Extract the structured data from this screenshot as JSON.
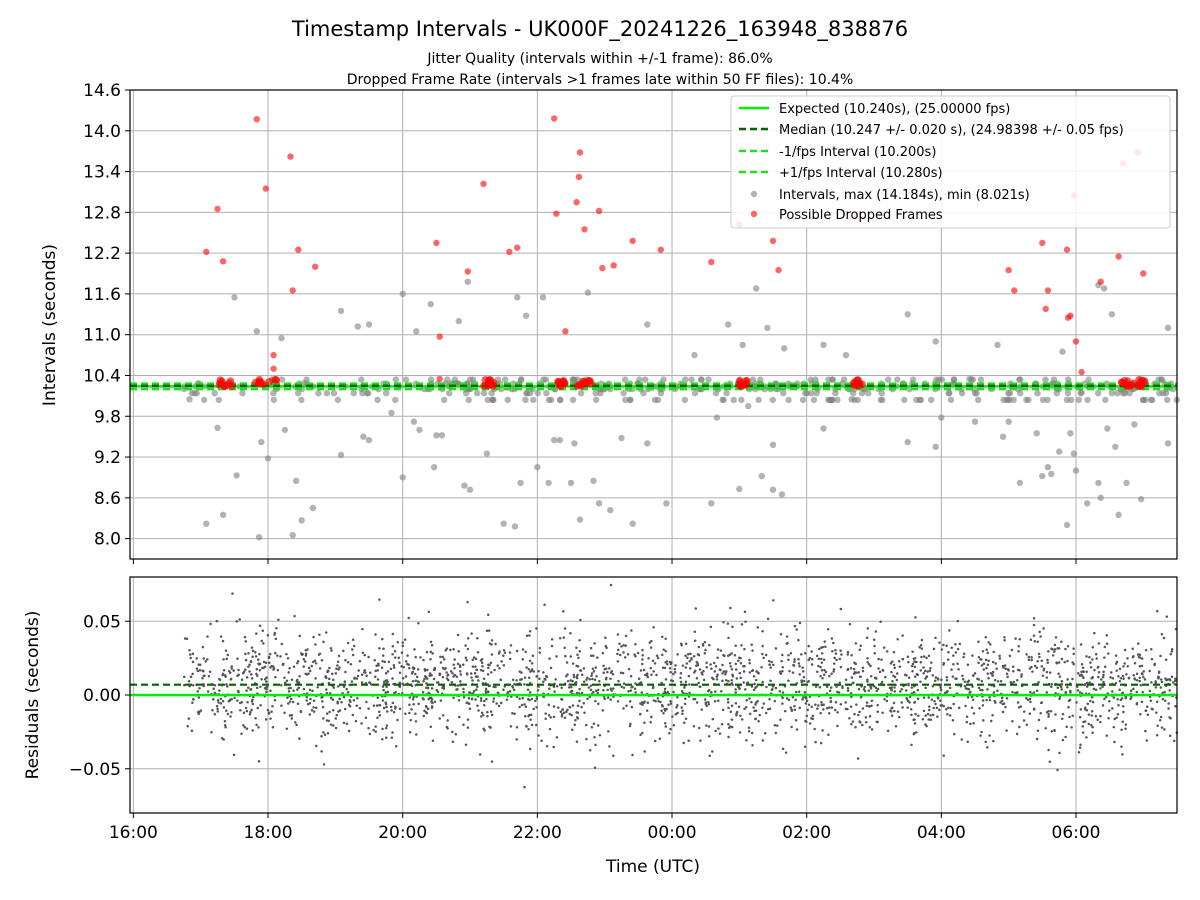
{
  "title": "Timestamp Intervals - UK000F_20241226_163948_838876",
  "subtitle_1": "Jitter Quality (intervals within +/-1 frame): 86.0%",
  "subtitle_2": "Dropped Frame Rate (intervals >1 frames late within 50 FF files): 10.4%",
  "colors": {
    "expected": "#00ee00",
    "median": "#006400",
    "interval_bounds": "#22dd22",
    "intervals": "#808080",
    "dropped": "#ff0000",
    "residuals": "#555555",
    "grid": "#b0b0b0"
  },
  "chart_data": [
    {
      "type": "scatter",
      "panel": "intervals",
      "ylabel": "Intervals (seconds)",
      "x_unit": "time (UTC)",
      "xlim": [
        "2024-12-26T15:57",
        "2024-12-27T07:30"
      ],
      "ylim": [
        7.7,
        14.6
      ],
      "y_ticks": [
        "8.0",
        "8.6",
        "9.2",
        "9.8",
        "10.4",
        "11.0",
        "11.6",
        "12.2",
        "12.8",
        "13.4",
        "14.0",
        "14.6"
      ],
      "grid": true,
      "legend_position": "top-right",
      "legend": [
        "Expected (10.240s), (25.00000 fps)",
        "Median (10.247 +/- 0.020 s), (24.98398 +/- 0.05 fps)",
        "-1/fps Interval (10.200s)",
        "+1/fps Interval (10.280s)",
        "Intervals, max (14.184s), min (8.021s)",
        "Possible Dropped Frames"
      ],
      "lines": {
        "expected": 10.24,
        "median": 10.247,
        "lower_interval": 10.2,
        "upper_interval": 10.28
      },
      "series": [
        {
          "name": "Intervals, max (14.184s), min (8.021s)",
          "kind": "intervals",
          "points": [
            [
              "16:50",
              10.05
            ],
            [
              "17:05",
              8.22
            ],
            [
              "17:15",
              9.63
            ],
            [
              "17:20",
              8.35
            ],
            [
              "17:30",
              11.55
            ],
            [
              "17:32",
              8.93
            ],
            [
              "17:50",
              11.05
            ],
            [
              "17:52",
              8.02
            ],
            [
              "17:54",
              9.42
            ],
            [
              "18:00",
              9.18
            ],
            [
              "18:12",
              10.95
            ],
            [
              "18:15",
              9.6
            ],
            [
              "18:22",
              8.05
            ],
            [
              "18:25",
              8.85
            ],
            [
              "18:30",
              8.27
            ],
            [
              "18:40",
              8.45
            ],
            [
              "19:05",
              11.35
            ],
            [
              "19:05",
              9.23
            ],
            [
              "19:20",
              11.12
            ],
            [
              "19:25",
              9.5
            ],
            [
              "19:30",
              11.15
            ],
            [
              "19:30",
              9.45
            ],
            [
              "19:50",
              9.85
            ],
            [
              "20:00",
              11.6
            ],
            [
              "20:00",
              8.9
            ],
            [
              "20:10",
              9.72
            ],
            [
              "20:12",
              11.05
            ],
            [
              "20:15",
              9.6
            ],
            [
              "20:25",
              11.45
            ],
            [
              "20:28",
              9.05
            ],
            [
              "20:30",
              9.52
            ],
            [
              "20:35",
              9.52
            ],
            [
              "20:50",
              11.2
            ],
            [
              "20:55",
              8.78
            ],
            [
              "20:58",
              11.78
            ],
            [
              "21:00",
              8.72
            ],
            [
              "21:15",
              9.25
            ],
            [
              "21:30",
              8.22
            ],
            [
              "21:40",
              8.18
            ],
            [
              "21:42",
              11.55
            ],
            [
              "21:45",
              8.82
            ],
            [
              "21:50",
              11.28
            ],
            [
              "22:00",
              9.05
            ],
            [
              "22:05",
              11.55
            ],
            [
              "22:10",
              8.82
            ],
            [
              "22:15",
              9.45
            ],
            [
              "22:20",
              9.45
            ],
            [
              "22:30",
              8.82
            ],
            [
              "22:33",
              9.4
            ],
            [
              "22:38",
              8.28
            ],
            [
              "22:45",
              11.62
            ],
            [
              "22:50",
              8.85
            ],
            [
              "22:55",
              8.52
            ],
            [
              "23:05",
              8.42
            ],
            [
              "23:15",
              9.48
            ],
            [
              "23:25",
              8.22
            ],
            [
              "23:38",
              11.15
            ],
            [
              "23:38",
              9.4
            ],
            [
              "23:55",
              8.52
            ],
            [
              "00:20",
              10.7
            ],
            [
              "00:35",
              8.52
            ],
            [
              "00:40",
              9.78
            ],
            [
              "00:50",
              11.15
            ],
            [
              "01:00",
              8.73
            ],
            [
              "01:03",
              10.85
            ],
            [
              "01:08",
              9.95
            ],
            [
              "01:15",
              11.68
            ],
            [
              "01:20",
              8.92
            ],
            [
              "01:25",
              11.1
            ],
            [
              "01:30",
              8.72
            ],
            [
              "01:30",
              9.38
            ],
            [
              "01:38",
              8.65
            ],
            [
              "01:40",
              10.8
            ],
            [
              "02:15",
              10.85
            ],
            [
              "02:15",
              9.62
            ],
            [
              "02:35",
              10.7
            ],
            [
              "02:40",
              10.05
            ],
            [
              "03:30",
              9.42
            ],
            [
              "03:30",
              11.3
            ],
            [
              "03:55",
              9.35
            ],
            [
              "03:55",
              10.9
            ],
            [
              "04:00",
              9.78
            ],
            [
              "04:25",
              10.35
            ],
            [
              "04:30",
              9.72
            ],
            [
              "04:50",
              10.85
            ],
            [
              "04:55",
              9.5
            ],
            [
              "05:00",
              9.72
            ],
            [
              "05:10",
              8.82
            ],
            [
              "05:25",
              9.55
            ],
            [
              "05:30",
              8.92
            ],
            [
              "05:35",
              9.05
            ],
            [
              "05:38",
              8.95
            ],
            [
              "05:45",
              9.28
            ],
            [
              "05:48",
              10.75
            ],
            [
              "05:52",
              8.2
            ],
            [
              "05:55",
              9.55
            ],
            [
              "05:58",
              9.25
            ],
            [
              "06:00",
              9.0
            ],
            [
              "06:05",
              10.15
            ],
            [
              "06:10",
              8.52
            ],
            [
              "06:20",
              11.73
            ],
            [
              "06:20",
              8.82
            ],
            [
              "06:22",
              8.6
            ],
            [
              "06:25",
              11.68
            ],
            [
              "06:28",
              9.62
            ],
            [
              "06:32",
              11.3
            ],
            [
              "06:35",
              9.35
            ],
            [
              "06:38",
              8.35
            ],
            [
              "06:45",
              8.82
            ],
            [
              "06:50",
              10.2
            ],
            [
              "06:52",
              9.68
            ],
            [
              "06:58",
              8.58
            ],
            [
              "07:22",
              11.1
            ],
            [
              "07:22",
              9.4
            ]
          ],
          "band": {
            "from": "16:45",
            "to": "07:30",
            "values": [
              10.04,
              10.14,
              10.2,
              10.24,
              10.28,
              10.34
            ]
          }
        },
        {
          "name": "Possible Dropped Frames",
          "kind": "dropped",
          "points": [
            [
              "17:05",
              12.22
            ],
            [
              "17:15",
              12.85
            ],
            [
              "17:20",
              12.08
            ],
            [
              "17:50",
              14.17
            ],
            [
              "17:58",
              13.15
            ],
            [
              "18:05",
              10.7
            ],
            [
              "18:05",
              10.5
            ],
            [
              "18:20",
              13.62
            ],
            [
              "18:22",
              11.65
            ],
            [
              "18:27",
              12.25
            ],
            [
              "18:42",
              12.0
            ],
            [
              "20:30",
              12.35
            ],
            [
              "20:33",
              10.97
            ],
            [
              "20:33",
              10.35
            ],
            [
              "20:58",
              11.93
            ],
            [
              "21:12",
              13.22
            ],
            [
              "21:35",
              12.22
            ],
            [
              "21:42",
              12.28
            ],
            [
              "22:15",
              14.18
            ],
            [
              "22:17",
              12.78
            ],
            [
              "22:25",
              11.05
            ],
            [
              "22:35",
              12.95
            ],
            [
              "22:37",
              13.32
            ],
            [
              "22:38",
              13.68
            ],
            [
              "22:42",
              12.55
            ],
            [
              "22:55",
              12.82
            ],
            [
              "22:58",
              11.98
            ],
            [
              "23:08",
              12.02
            ],
            [
              "23:25",
              12.38
            ],
            [
              "23:50",
              12.25
            ],
            [
              "00:35",
              12.07
            ],
            [
              "01:00",
              12.62
            ],
            [
              "01:30",
              12.38
            ],
            [
              "01:35",
              11.95
            ],
            [
              "02:45",
              12.75
            ],
            [
              "05:00",
              11.95
            ],
            [
              "05:05",
              11.65
            ],
            [
              "05:30",
              12.35
            ],
            [
              "05:33",
              11.38
            ],
            [
              "05:35",
              11.65
            ],
            [
              "05:52",
              12.25
            ],
            [
              "05:53",
              11.25
            ],
            [
              "05:55",
              11.28
            ],
            [
              "05:58",
              13.05
            ],
            [
              "06:00",
              10.9
            ],
            [
              "06:05",
              10.45
            ],
            [
              "06:22",
              11.78
            ],
            [
              "06:38",
              12.15
            ],
            [
              "06:42",
              13.52
            ],
            [
              "06:55",
              13.68
            ],
            [
              "07:00",
              11.9
            ]
          ],
          "clusters": [
            {
              "from": "17:15",
              "to": "17:28"
            },
            {
              "from": "17:48",
              "to": "18:08"
            },
            {
              "from": "21:12",
              "to": "21:22"
            },
            {
              "from": "22:15",
              "to": "22:25"
            },
            {
              "from": "22:35",
              "to": "22:48"
            },
            {
              "from": "01:00",
              "to": "01:07"
            },
            {
              "from": "02:42",
              "to": "02:50"
            },
            {
              "from": "06:40",
              "to": "06:52"
            },
            {
              "from": "06:55",
              "to": "07:02"
            }
          ]
        }
      ]
    },
    {
      "type": "scatter",
      "panel": "residuals",
      "xlabel": "Time (UTC)",
      "ylabel": "Residuals (seconds)",
      "x_unit": "time (UTC)",
      "xlim": [
        "2024-12-26T15:57",
        "2024-12-27T07:30"
      ],
      "ylim": [
        -0.08,
        0.08
      ],
      "y_ticks": [
        "−0.05",
        "0.00",
        "0.05"
      ],
      "x_ticks": [
        "16:00",
        "18:00",
        "20:00",
        "22:00",
        "00:00",
        "02:00",
        "04:00",
        "06:00"
      ],
      "grid": true,
      "lines": {
        "expected": 0.0,
        "median": 0.007
      },
      "residual_spread": {
        "from": "16:45",
        "to": "07:30",
        "center": 0.007,
        "sd": 0.018
      }
    }
  ]
}
